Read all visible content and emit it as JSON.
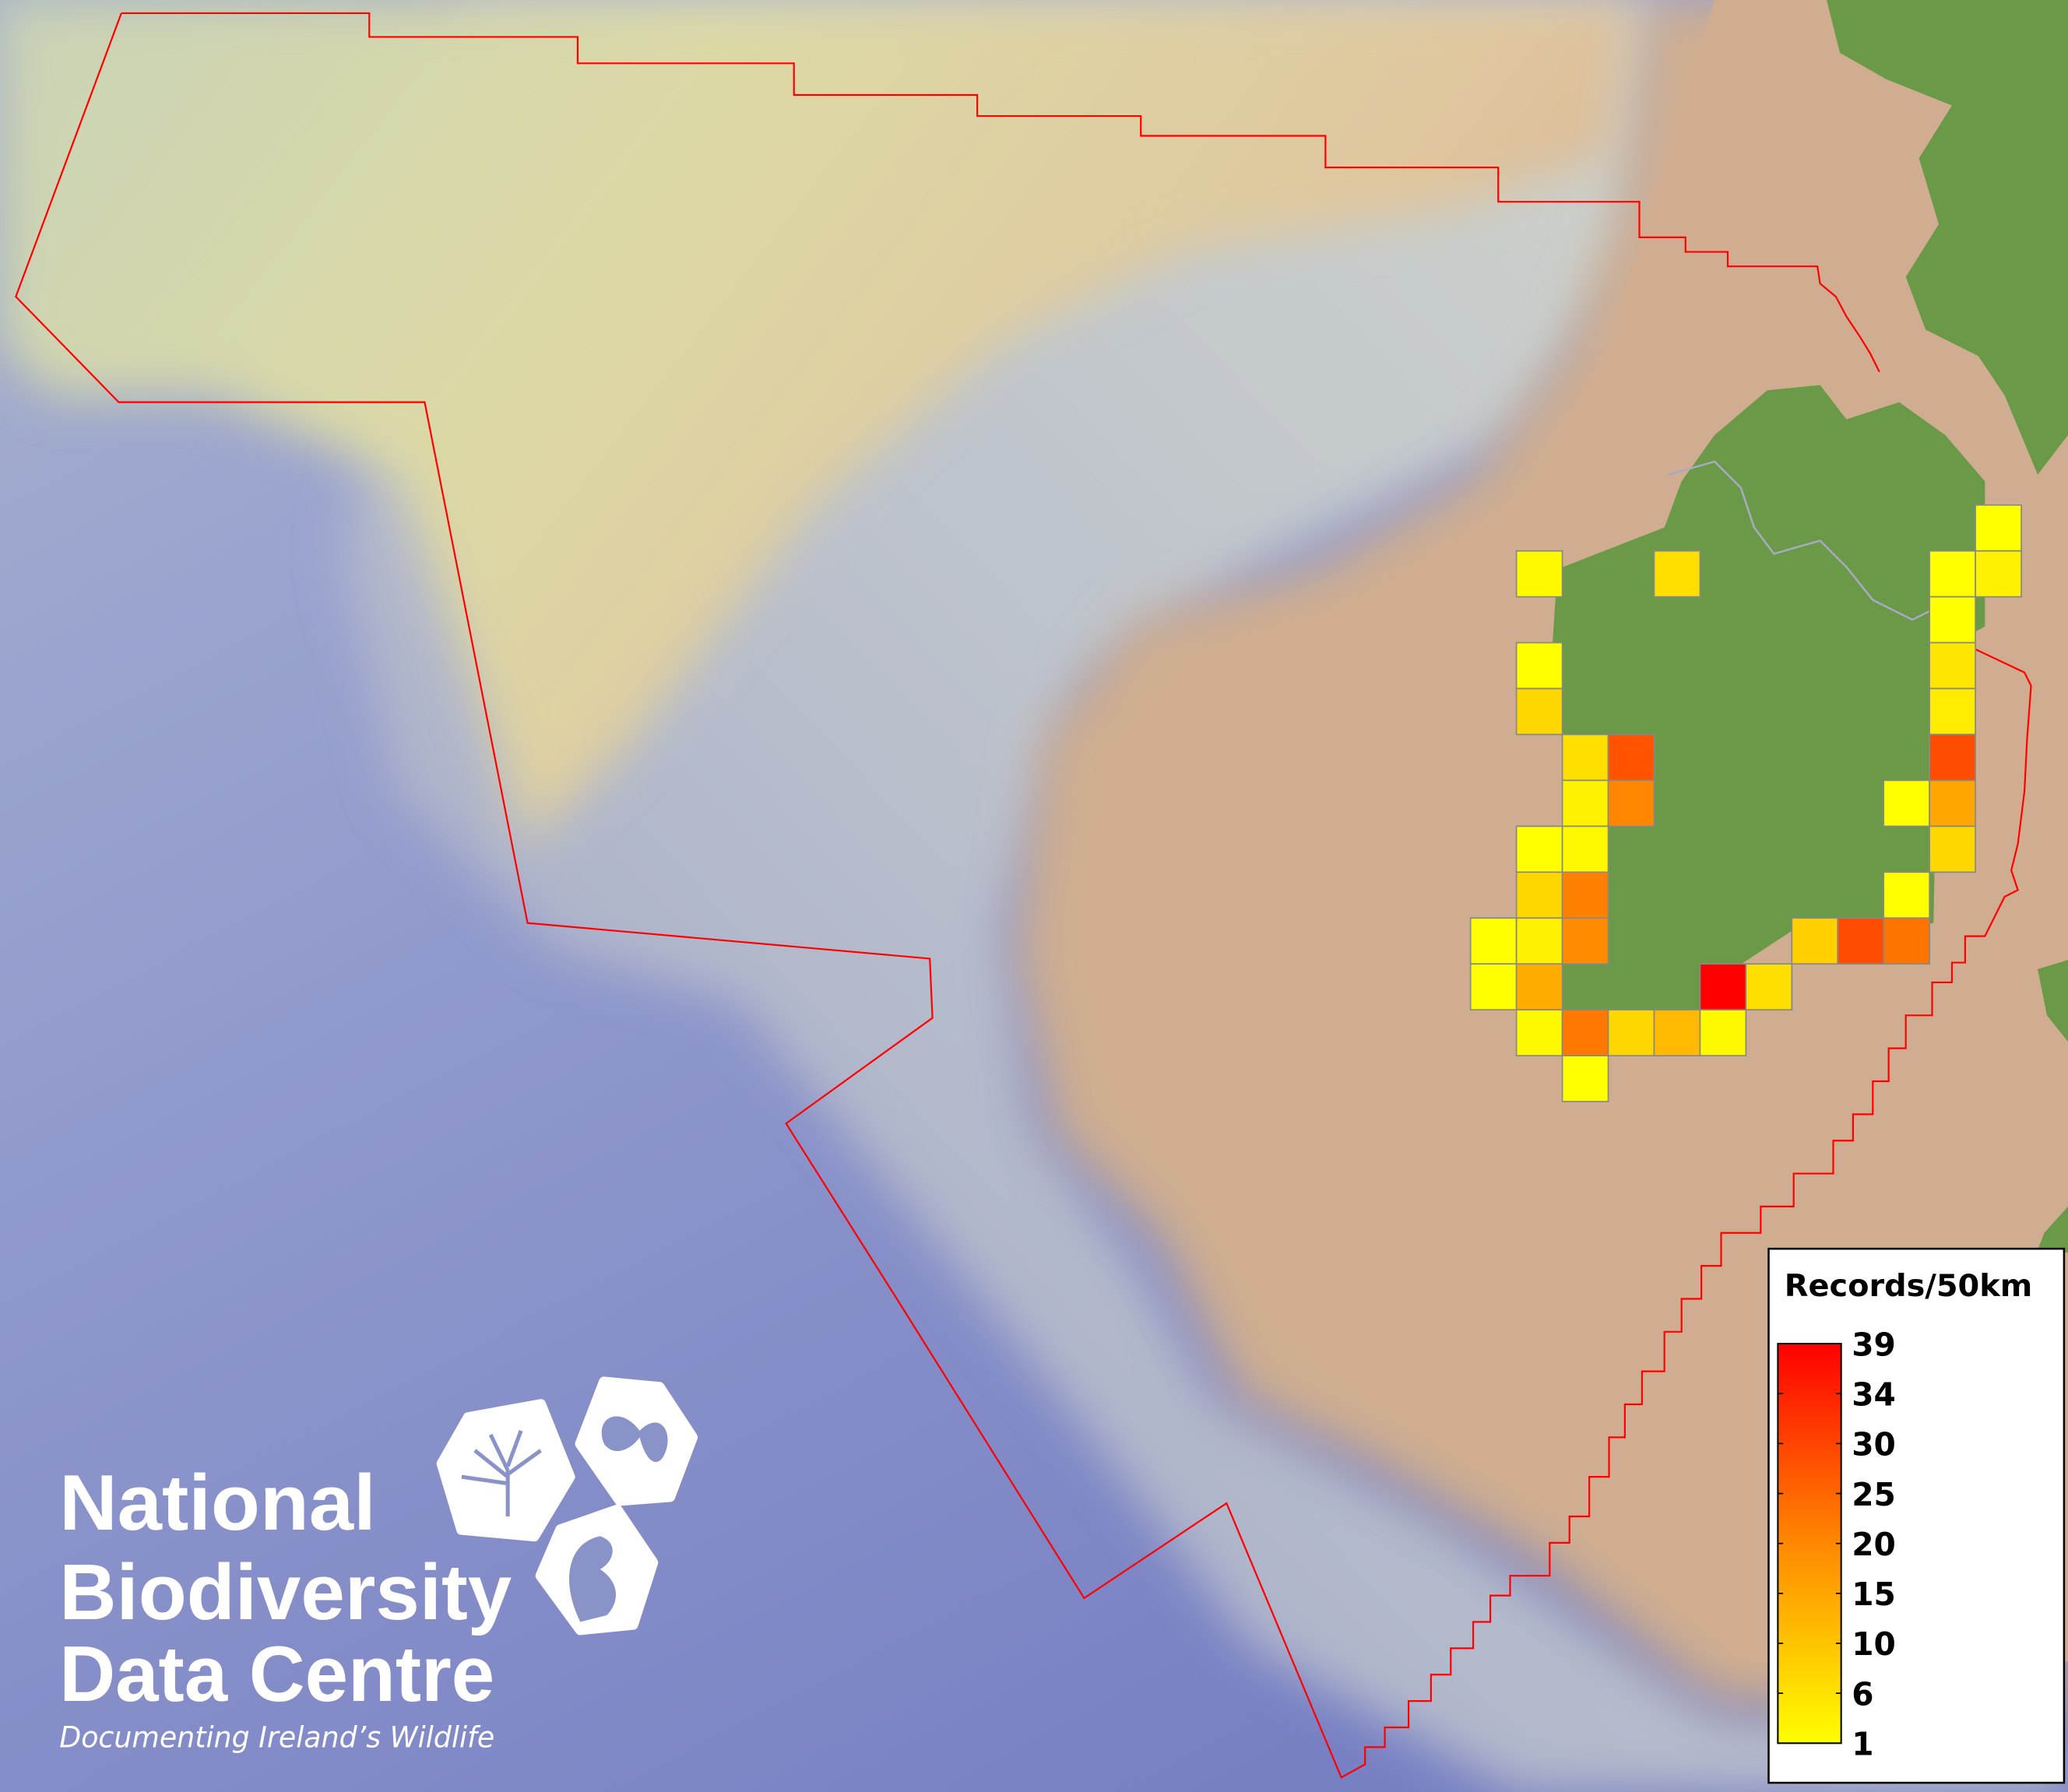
{
  "logo": {
    "line1": "National",
    "line2": "Biodiversity",
    "line3": "Data Centre",
    "tagline": "Documenting Ireland’s Wildlife",
    "icons": [
      "tree-icon",
      "butterfly-icon",
      "seahorse-icon"
    ]
  },
  "colors": {
    "boundary": "#ff0000",
    "land": "#6a9a48",
    "shelf": "#cfae90",
    "abyss": "#8088c8",
    "cell_border": "#888888",
    "scale_low": "#ffff00",
    "scale_high": "#ff0000"
  },
  "chart_data": {
    "type": "heatmap",
    "grid": "50km squares",
    "legend": {
      "title": "Records/50km",
      "ticks": [
        "39",
        "34",
        "30",
        "25",
        "20",
        "15",
        "10",
        "6",
        "1"
      ],
      "range": [
        1,
        39
      ],
      "placement": "bottom-right"
    },
    "cells": [
      {
        "col": 11,
        "row": 0,
        "value": 1
      },
      {
        "col": 1,
        "row": 1,
        "value": 2
      },
      {
        "col": 4,
        "row": 1,
        "value": 6
      },
      {
        "col": 10,
        "row": 1,
        "value": 1
      },
      {
        "col": 11,
        "row": 1,
        "value": 3
      },
      {
        "col": 10,
        "row": 2,
        "value": 1
      },
      {
        "col": 1,
        "row": 3,
        "value": 1
      },
      {
        "col": 10,
        "row": 3,
        "value": 5
      },
      {
        "col": 1,
        "row": 4,
        "value": 7
      },
      {
        "col": 10,
        "row": 4,
        "value": 4
      },
      {
        "col": 2,
        "row": 5,
        "value": 6
      },
      {
        "col": 3,
        "row": 5,
        "value": 27
      },
      {
        "col": 10,
        "row": 5,
        "value": 28
      },
      {
        "col": 2,
        "row": 6,
        "value": 3
      },
      {
        "col": 3,
        "row": 6,
        "value": 19
      },
      {
        "col": 9,
        "row": 6,
        "value": 1
      },
      {
        "col": 10,
        "row": 6,
        "value": 14
      },
      {
        "col": 1,
        "row": 7,
        "value": 1
      },
      {
        "col": 2,
        "row": 7,
        "value": 2
      },
      {
        "col": 10,
        "row": 7,
        "value": 7
      },
      {
        "col": 1,
        "row": 8,
        "value": 7
      },
      {
        "col": 2,
        "row": 8,
        "value": 20
      },
      {
        "col": 9,
        "row": 8,
        "value": 1
      },
      {
        "col": 0,
        "row": 9,
        "value": 1
      },
      {
        "col": 1,
        "row": 9,
        "value": 3
      },
      {
        "col": 2,
        "row": 9,
        "value": 18
      },
      {
        "col": 7,
        "row": 9,
        "value": 8
      },
      {
        "col": 8,
        "row": 9,
        "value": 28
      },
      {
        "col": 9,
        "row": 9,
        "value": 22
      },
      {
        "col": 0,
        "row": 10,
        "value": 1
      },
      {
        "col": 1,
        "row": 10,
        "value": 13
      },
      {
        "col": 5,
        "row": 10,
        "value": 39
      },
      {
        "col": 6,
        "row": 10,
        "value": 6
      },
      {
        "col": 1,
        "row": 11,
        "value": 2
      },
      {
        "col": 2,
        "row": 11,
        "value": 21
      },
      {
        "col": 3,
        "row": 11,
        "value": 7
      },
      {
        "col": 4,
        "row": 11,
        "value": 11
      },
      {
        "col": 5,
        "row": 11,
        "value": 2
      },
      {
        "col": 2,
        "row": 12,
        "value": 1
      }
    ]
  }
}
